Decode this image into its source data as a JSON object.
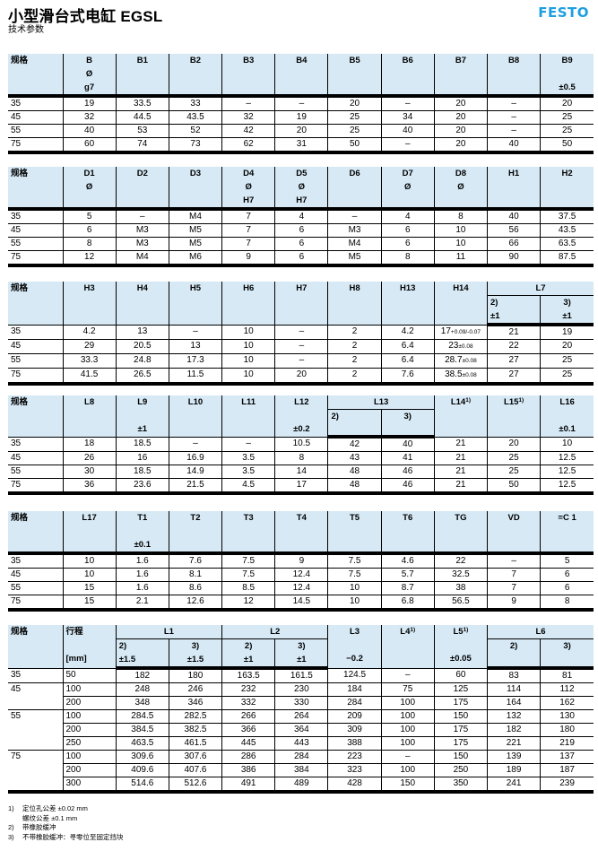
{
  "header": {
    "title": "小型滑台式电缸 EGSL",
    "subtitle": "技术参数",
    "logo": "FESTO",
    "logo_color": "#1d9ee0"
  },
  "header_bg_color": "#d6e9f5",
  "tables": [
    {
      "columns": [
        {
          "label": "规格",
          "lines": []
        },
        {
          "label": "B",
          "lines": [
            "Ø",
            "g7"
          ]
        },
        {
          "label": "B1",
          "lines": []
        },
        {
          "label": "B2",
          "lines": []
        },
        {
          "label": "B3",
          "lines": []
        },
        {
          "label": "B4",
          "lines": []
        },
        {
          "label": "B5",
          "lines": []
        },
        {
          "label": "B6",
          "lines": []
        },
        {
          "label": "B7",
          "lines": []
        },
        {
          "label": "B8",
          "lines": []
        },
        {
          "label": "B9",
          "lines": [
            "",
            "±0.5"
          ]
        }
      ],
      "rows": [
        [
          "35",
          "19",
          "33.5",
          "33",
          "–",
          "–",
          "20",
          "–",
          "20",
          "–",
          "20"
        ],
        [
          "45",
          "32",
          "44.5",
          "43.5",
          "32",
          "19",
          "25",
          "34",
          "20",
          "–",
          "25"
        ],
        [
          "55",
          "40",
          "53",
          "52",
          "42",
          "20",
          "25",
          "40",
          "20",
          "–",
          "25"
        ],
        [
          "75",
          "60",
          "74",
          "73",
          "62",
          "31",
          "50",
          "–",
          "20",
          "40",
          "50"
        ]
      ]
    },
    {
      "columns": [
        {
          "label": "规格",
          "lines": []
        },
        {
          "label": "D1",
          "lines": [
            "Ø"
          ]
        },
        {
          "label": "D2",
          "lines": []
        },
        {
          "label": "D3",
          "lines": []
        },
        {
          "label": "D4",
          "lines": [
            "Ø",
            "H7"
          ]
        },
        {
          "label": "D5",
          "lines": [
            "Ø",
            "H7"
          ]
        },
        {
          "label": "D6",
          "lines": []
        },
        {
          "label": "D7",
          "lines": [
            "Ø"
          ]
        },
        {
          "label": "D8",
          "lines": [
            "Ø"
          ]
        },
        {
          "label": "H1",
          "lines": []
        },
        {
          "label": "H2",
          "lines": []
        }
      ],
      "rows": [
        [
          "35",
          "5",
          "–",
          "M4",
          "7",
          "4",
          "–",
          "4",
          "8",
          "40",
          "37.5"
        ],
        [
          "45",
          "6",
          "M3",
          "M5",
          "7",
          "6",
          "M3",
          "6",
          "10",
          "56",
          "43.5"
        ],
        [
          "55",
          "8",
          "M3",
          "M5",
          "7",
          "6",
          "M4",
          "6",
          "10",
          "66",
          "63.5"
        ],
        [
          "75",
          "12",
          "M4",
          "M6",
          "9",
          "6",
          "M5",
          "8",
          "11",
          "90",
          "87.5"
        ]
      ]
    },
    {
      "columns": [
        {
          "label": "规格",
          "lines": []
        },
        {
          "label": "H3",
          "lines": []
        },
        {
          "label": "H4",
          "lines": []
        },
        {
          "label": "H5",
          "lines": []
        },
        {
          "label": "H6",
          "lines": []
        },
        {
          "label": "H7",
          "lines": []
        },
        {
          "label": "H8",
          "lines": []
        },
        {
          "label": "H13",
          "lines": []
        },
        {
          "label": "H14",
          "lines": []
        },
        {
          "label": "L7",
          "children": [
            {
              "lines": [
                "2)",
                "±1"
              ]
            },
            {
              "lines": [
                "3)",
                "±1"
              ]
            }
          ]
        }
      ],
      "rows": [
        [
          "35",
          "4.2",
          "13",
          "–",
          "10",
          "–",
          "2",
          "4.2",
          {
            "v": "17",
            "tol": "+0.09/-0.07"
          },
          "21",
          "19"
        ],
        [
          "45",
          "29",
          "20.5",
          "13",
          "10",
          "–",
          "2",
          "6.4",
          {
            "v": "23",
            "tol": "±0.08"
          },
          "22",
          "20"
        ],
        [
          "55",
          "33.3",
          "24.8",
          "17.3",
          "10",
          "–",
          "2",
          "6.4",
          {
            "v": "28.7",
            "tol": "±0.08"
          },
          "27",
          "25"
        ],
        [
          "75",
          "41.5",
          "26.5",
          "11.5",
          "10",
          "20",
          "2",
          "7.6",
          {
            "v": "38.5",
            "tol": "±0.08"
          },
          "27",
          "25"
        ]
      ]
    },
    {
      "columns": [
        {
          "label": "规格",
          "lines": []
        },
        {
          "label": "L8",
          "lines": []
        },
        {
          "label": "L9",
          "lines": [
            "",
            "±1"
          ]
        },
        {
          "label": "L10",
          "lines": []
        },
        {
          "label": "L11",
          "lines": []
        },
        {
          "label": "L12",
          "lines": [
            "",
            "±0.2"
          ]
        },
        {
          "label": "L13",
          "children": [
            {
              "lines": [
                "2)"
              ]
            },
            {
              "lines": [
                "3)"
              ]
            }
          ]
        },
        {
          "label": "L14",
          "sup": "1)",
          "lines": []
        },
        {
          "label": "L15",
          "sup": "1)",
          "lines": []
        },
        {
          "label": "L16",
          "lines": [
            "",
            "±0.1"
          ]
        }
      ],
      "rows": [
        [
          "35",
          "18",
          "18.5",
          "–",
          "–",
          "10.5",
          "42",
          "40",
          "21",
          "20",
          "10"
        ],
        [
          "45",
          "26",
          "16",
          "16.9",
          "3.5",
          "8",
          "43",
          "41",
          "21",
          "25",
          "12.5"
        ],
        [
          "55",
          "30",
          "18.5",
          "14.9",
          "3.5",
          "14",
          "48",
          "46",
          "21",
          "25",
          "12.5"
        ],
        [
          "75",
          "36",
          "23.6",
          "21.5",
          "4.5",
          "17",
          "48",
          "46",
          "21",
          "50",
          "12.5"
        ]
      ]
    },
    {
      "columns": [
        {
          "label": "规格",
          "lines": []
        },
        {
          "label": "L17",
          "lines": []
        },
        {
          "label": "T1",
          "lines": [
            "",
            "±0.1"
          ]
        },
        {
          "label": "T2",
          "lines": []
        },
        {
          "label": "T3",
          "lines": []
        },
        {
          "label": "T4",
          "lines": []
        },
        {
          "label": "T5",
          "lines": []
        },
        {
          "label": "T6",
          "lines": []
        },
        {
          "label": "TG",
          "lines": []
        },
        {
          "label": "VD",
          "lines": []
        },
        {
          "label": "=C 1",
          "lines": []
        }
      ],
      "rows": [
        [
          "35",
          "10",
          "1.6",
          "7.6",
          "7.5",
          "9",
          "7.5",
          "4.6",
          "22",
          "–",
          "5"
        ],
        [
          "45",
          "10",
          "1.6",
          "8.1",
          "7.5",
          "12.4",
          "7.5",
          "5.7",
          "32.5",
          "7",
          "6"
        ],
        [
          "55",
          "15",
          "1.6",
          "8.6",
          "8.5",
          "12.4",
          "10",
          "8.7",
          "38",
          "7",
          "6"
        ],
        [
          "75",
          "15",
          "2.1",
          "12.6",
          "12",
          "14.5",
          "10",
          "6.8",
          "56.5",
          "9",
          "8"
        ]
      ]
    },
    {
      "columns": [
        {
          "label": "规格",
          "lines": []
        },
        {
          "label": "行程",
          "lines": [
            "",
            "[mm]"
          ],
          "align": "left"
        },
        {
          "label": "L1",
          "children": [
            {
              "lines": [
                "2)",
                "±1.5"
              ]
            },
            {
              "lines": [
                "3)",
                "±1.5"
              ]
            }
          ]
        },
        {
          "label": "L2",
          "children": [
            {
              "lines": [
                "2)",
                "±1"
              ]
            },
            {
              "lines": [
                "3)",
                "±1"
              ]
            }
          ]
        },
        {
          "label": "L3",
          "lines": [
            "",
            "−0.2"
          ]
        },
        {
          "label": "L4",
          "sup": "1)",
          "lines": []
        },
        {
          "label": "L5",
          "sup": "1)",
          "lines": [
            "",
            "±0.05"
          ]
        },
        {
          "label": "L6",
          "children": [
            {
              "lines": [
                "2)"
              ]
            },
            {
              "lines": [
                "3)"
              ]
            }
          ]
        }
      ],
      "groups": [
        {
          "size": "35",
          "rows": [
            [
              "50",
              "182",
              "180",
              "163.5",
              "161.5",
              "124.5",
              "–",
              "60",
              "83",
              "81"
            ]
          ]
        },
        {
          "size": "45",
          "rows": [
            [
              "100",
              "248",
              "246",
              "232",
              "230",
              "184",
              "75",
              "125",
              "114",
              "112"
            ],
            [
              "200",
              "348",
              "346",
              "332",
              "330",
              "284",
              "100",
              "175",
              "164",
              "162"
            ]
          ]
        },
        {
          "size": "55",
          "rows": [
            [
              "100",
              "284.5",
              "282.5",
              "266",
              "264",
              "209",
              "100",
              "150",
              "132",
              "130"
            ],
            [
              "200",
              "384.5",
              "382.5",
              "366",
              "364",
              "309",
              "100",
              "175",
              "182",
              "180"
            ],
            [
              "250",
              "463.5",
              "461.5",
              "445",
              "443",
              "388",
              "100",
              "175",
              "221",
              "219"
            ]
          ]
        },
        {
          "size": "75",
          "rows": [
            [
              "100",
              "309.6",
              "307.6",
              "286",
              "284",
              "223",
              "–",
              "150",
              "139",
              "137"
            ],
            [
              "200",
              "409.6",
              "407.6",
              "386",
              "384",
              "323",
              "100",
              "250",
              "189",
              "187"
            ],
            [
              "300",
              "514.6",
              "512.6",
              "491",
              "489",
              "428",
              "150",
              "350",
              "241",
              "239"
            ]
          ]
        }
      ]
    }
  ],
  "footnotes": [
    {
      "key": "1)",
      "lines": [
        "定位孔公差 ±0.02 mm",
        "螺纹公差 ±0.1 mm"
      ]
    },
    {
      "key": "2)",
      "lines": [
        "带橡胶缓冲"
      ]
    },
    {
      "key": "3)",
      "lines": [
        "不带橡胶缓冲：寻零位至固定挡块"
      ]
    }
  ]
}
